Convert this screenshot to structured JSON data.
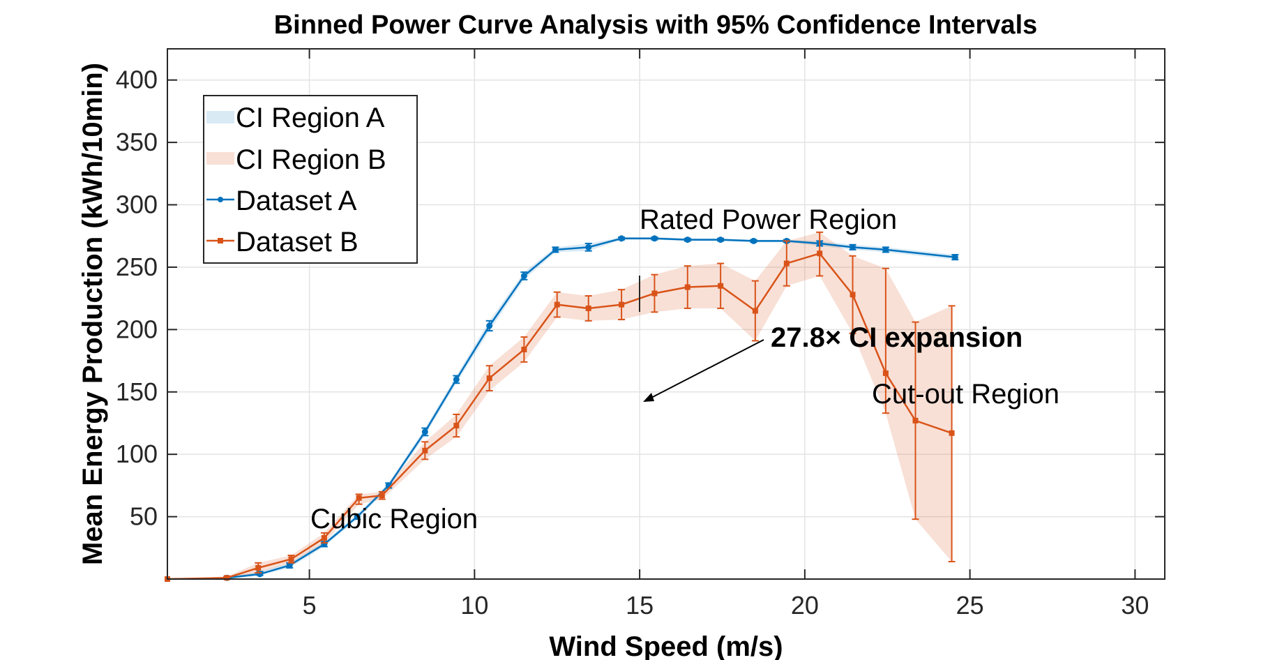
{
  "chart_data": {
    "type": "line",
    "title": "Binned Power Curve Analysis with 95% Confidence Intervals",
    "xlabel": "Wind Speed (m/s)",
    "ylabel": "Mean Energy Production (kWh/10min)",
    "xlim": [
      0.7,
      30.9
    ],
    "ylim": [
      0,
      425
    ],
    "xticks": [
      5,
      10,
      15,
      20,
      25,
      30
    ],
    "yticks": [
      50,
      100,
      150,
      200,
      250,
      300,
      350,
      400
    ],
    "grid": true,
    "legend_position": "top-left",
    "legend": [
      "CI Region A",
      "CI Region B",
      "Dataset A",
      "Dataset B"
    ],
    "series": [
      {
        "name": "Dataset A",
        "color": "#0072BD",
        "band_color": "#0072BD",
        "marker": "circle",
        "ci_legend": "CI Region A",
        "x": [
          2.5,
          3.5,
          4.4,
          5.45,
          6.45,
          7.4,
          8.5,
          9.45,
          10.45,
          11.5,
          12.45,
          13.45,
          14.45,
          15.45,
          16.45,
          17.45,
          18.45,
          19.45,
          20.45,
          21.45,
          22.45,
          24.55
        ],
        "y": [
          1,
          4,
          11,
          28,
          50,
          75,
          118,
          160,
          203,
          243,
          264,
          266,
          273,
          273,
          272,
          272,
          271,
          271,
          269,
          266,
          264,
          258
        ],
        "ci_lower": [
          0,
          3,
          9,
          26,
          48,
          73,
          115,
          157,
          199,
          240,
          262,
          263,
          272,
          272,
          271,
          271,
          270,
          270,
          267,
          264,
          262,
          256
        ],
        "ci_upper": [
          2,
          6,
          13,
          30,
          52,
          77,
          121,
          163,
          207,
          246,
          266,
          269,
          274,
          274,
          273,
          273,
          272,
          272,
          271,
          268,
          266,
          260
        ]
      },
      {
        "name": "Dataset B",
        "color": "#D95319",
        "band_color": "#D95319",
        "marker": "square",
        "ci_legend": "CI Region B",
        "x": [
          0.7,
          2.5,
          3.45,
          4.45,
          5.45,
          6.5,
          7.2,
          8.5,
          9.45,
          10.45,
          11.5,
          12.5,
          13.45,
          14.45,
          15.45,
          16.45,
          17.45,
          18.5,
          19.45,
          20.45,
          21.45,
          22.45,
          23.35,
          24.45
        ],
        "y": [
          0,
          1,
          9,
          16,
          33,
          65,
          67,
          103,
          123,
          161,
          184,
          220,
          217,
          220,
          229,
          234,
          235,
          215,
          253,
          261,
          228,
          165,
          127,
          117
        ],
        "ci_lower": [
          0,
          0,
          5,
          13,
          29,
          60,
          64,
          96,
          114,
          151,
          174,
          210,
          207,
          208,
          214,
          217,
          217,
          191,
          235,
          243,
          197,
          133,
          48,
          14
        ],
        "ci_upper": [
          0,
          2,
          13,
          19,
          37,
          68,
          70,
          110,
          132,
          171,
          194,
          230,
          227,
          232,
          244,
          251,
          253,
          239,
          271,
          278,
          259,
          249,
          206,
          219
        ]
      }
    ],
    "annotations": {
      "rated": "Rated Power Region",
      "expansion": "27.8× CI expansion",
      "cubic": "Cubic Region",
      "cutout": "Cut-out Region"
    }
  }
}
